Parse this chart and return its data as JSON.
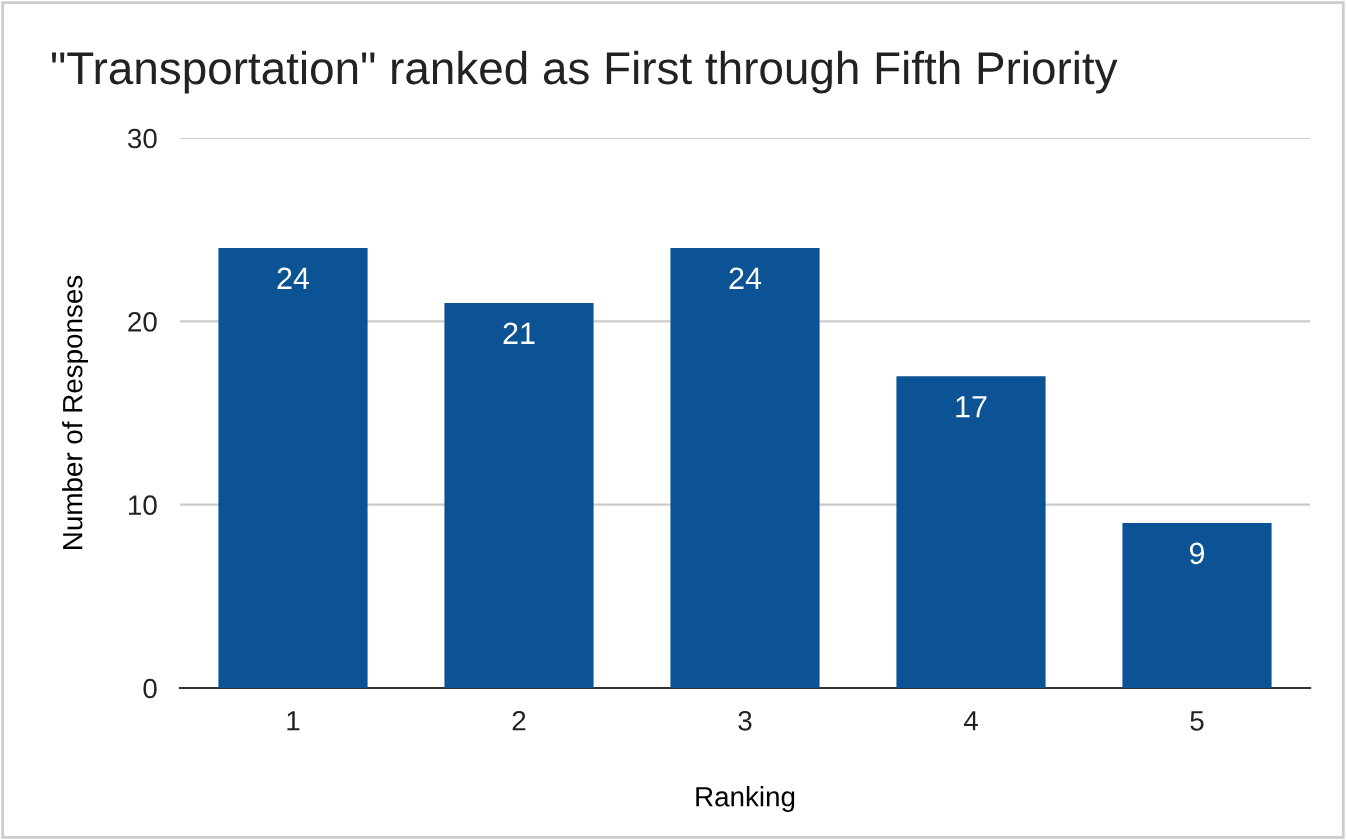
{
  "chart_data": {
    "type": "bar",
    "title": "\"Transportation\" ranked as First through Fifth Priority",
    "xlabel": "Ranking",
    "ylabel": "Number of Responses",
    "categories": [
      "1",
      "2",
      "3",
      "4",
      "5"
    ],
    "values": [
      24,
      21,
      24,
      17,
      9
    ],
    "color": "#0b5394",
    "ylim": [
      0,
      30
    ],
    "yticks": [
      0,
      10,
      20,
      30
    ],
    "grid": "y",
    "data_labels": true
  }
}
